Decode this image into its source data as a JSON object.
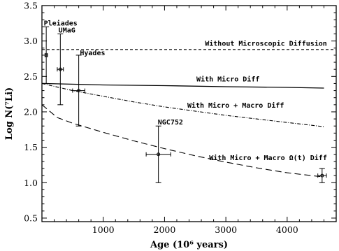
{
  "chart_data": {
    "type": "line",
    "xlabel": "Age (10⁶ years)",
    "ylabel": "Log N(⁷Li)",
    "xlim": [
      0,
      4800
    ],
    "ylim": [
      0.45,
      3.5
    ],
    "x_ticks": [
      1000,
      2000,
      3000,
      4000
    ],
    "y_ticks": [
      0.5,
      1.0,
      1.5,
      2.0,
      2.5,
      3.0,
      3.5
    ],
    "y_tick_labels": [
      "0.5",
      "1.0",
      "1.5",
      "2.0",
      "2.5",
      "3.0",
      "3.5"
    ],
    "grid": false,
    "series": [
      {
        "name": "Without Microscopic Diffusion",
        "style": "dashed-short",
        "x": [
          0,
          4800
        ],
        "y": [
          2.88,
          2.88
        ]
      },
      {
        "name": "With Micro Diff",
        "style": "solid",
        "x": [
          0,
          1000,
          2000,
          3000,
          4000,
          4600
        ],
        "y": [
          2.4,
          2.38,
          2.37,
          2.355,
          2.345,
          2.335
        ]
      },
      {
        "name": "With Micro + Macro Diff",
        "style": "dotted",
        "x": [
          0,
          500,
          1000,
          1500,
          2000,
          2500,
          3000,
          3500,
          4000,
          4600
        ],
        "y": [
          2.4,
          2.3,
          2.22,
          2.14,
          2.07,
          2.01,
          1.95,
          1.9,
          1.85,
          1.79
        ]
      },
      {
        "name": "With Micro + Macro Ω(t) Diff",
        "style": "dashed-long",
        "x": [
          0,
          250,
          500,
          1000,
          1500,
          2000,
          2500,
          3000,
          3500,
          4000,
          4600
        ],
        "y": [
          2.1,
          1.92,
          1.84,
          1.71,
          1.59,
          1.48,
          1.38,
          1.29,
          1.21,
          1.14,
          1.08
        ]
      }
    ],
    "clusters": [
      {
        "name": "Pleiades",
        "x": 70,
        "y": 2.8,
        "y_low": 2.4,
        "y_high": 3.2,
        "x_low": 50,
        "x_high": 90
      },
      {
        "name": "UMaG",
        "x": 300,
        "y": 2.6,
        "y_low": 2.1,
        "y_high": 3.1,
        "x_low": 250,
        "x_high": 350
      },
      {
        "name": "Hyades",
        "x": 600,
        "y": 2.3,
        "y_low": 1.8,
        "y_high": 2.8,
        "x_low": 500,
        "x_high": 700
      },
      {
        "name": "NGC752",
        "x": 1900,
        "y": 1.4,
        "y_low": 1.0,
        "y_high": 1.8,
        "x_low": 1700,
        "x_high": 2100
      },
      {
        "name": "",
        "x": 4570,
        "y": 1.1,
        "y_low": 1.0,
        "y_high": 1.2,
        "x_low": 4500,
        "x_high": 4640
      }
    ]
  }
}
